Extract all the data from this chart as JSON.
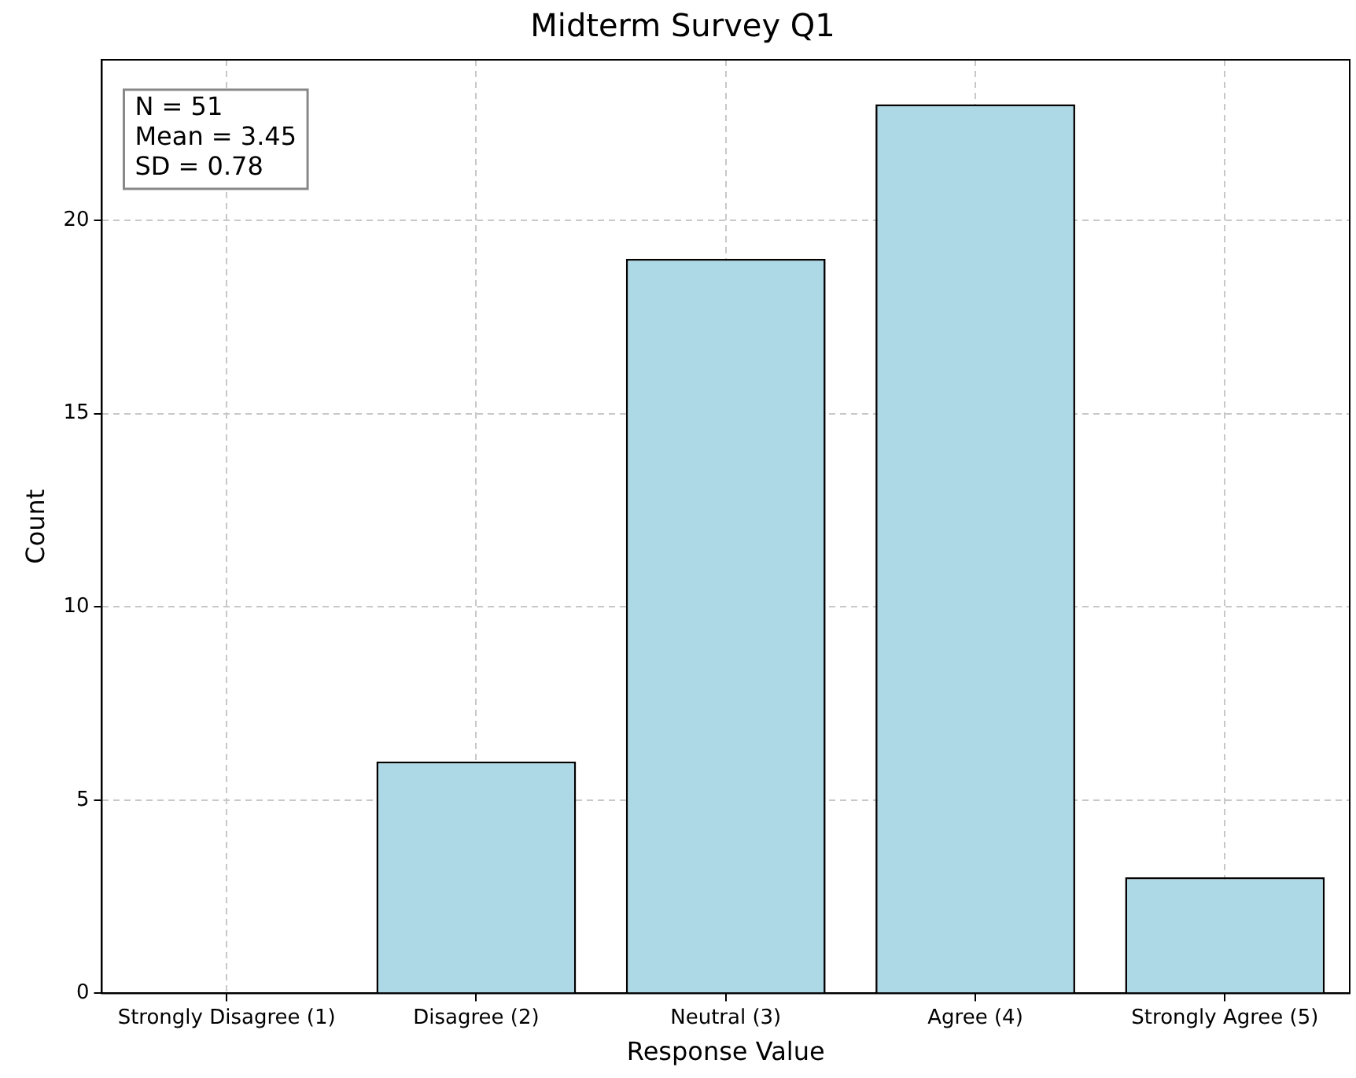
{
  "chart_data": {
    "type": "bar",
    "title": "Midterm Survey Q1",
    "xlabel": "Response Value",
    "ylabel": "Count",
    "categories": [
      "Strongly Disagree (1)",
      "Disagree (2)",
      "Neutral (3)",
      "Agree (4)",
      "Strongly Agree (5)"
    ],
    "values": [
      0,
      6,
      19,
      23,
      3
    ],
    "color": "#add8e6",
    "ylim": [
      0,
      24.15
    ],
    "yticks": [
      0,
      5,
      10,
      15,
      20
    ],
    "grid": true,
    "line_style": "dashed",
    "legend": false,
    "annotations": [
      "N = 51",
      "Mean = 3.45",
      "SD = 0.78"
    ]
  }
}
